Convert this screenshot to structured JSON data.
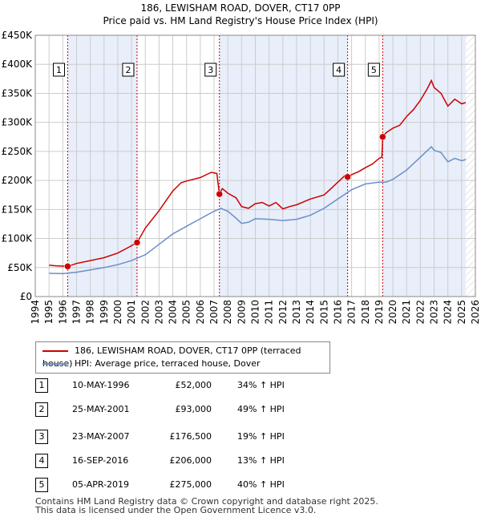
{
  "title_line1": "186, LEWISHAM ROAD, DOVER, CT17 0PP",
  "title_line2": "Price paid vs. HM Land Registry's House Price Index (HPI)",
  "colors": {
    "property": "#cc0000",
    "hpi": "#6b8fc9",
    "band": "#e8eefa",
    "grid": "#cccccc",
    "marker_line": "#cc0000"
  },
  "chart_data": {
    "type": "line",
    "xlim": [
      1994,
      2026
    ],
    "ylim": [
      0,
      450000
    ],
    "y_ticks": [
      0,
      50000,
      100000,
      150000,
      200000,
      250000,
      300000,
      350000,
      400000,
      450000
    ],
    "y_tick_labels": [
      "£0",
      "£50K",
      "£100K",
      "£150K",
      "£200K",
      "£250K",
      "£300K",
      "£350K",
      "£400K",
      "£450K"
    ],
    "x_ticks": [
      1994,
      1995,
      1996,
      1997,
      1998,
      1999,
      2000,
      2001,
      2002,
      2003,
      2004,
      2005,
      2006,
      2007,
      2008,
      2009,
      2010,
      2011,
      2012,
      2013,
      2014,
      2015,
      2016,
      2017,
      2018,
      2019,
      2020,
      2021,
      2022,
      2023,
      2024,
      2025,
      2026
    ],
    "data_start": 1995.0,
    "data_end": 2025.3,
    "series": [
      {
        "name": "186, LEWISHAM ROAD, DOVER, CT17 0PP (terraced house)",
        "color": "#cc0000",
        "points": [
          [
            1995.0,
            54000
          ],
          [
            1995.5,
            53000
          ],
          [
            1996.0,
            52500
          ],
          [
            1996.36,
            52000
          ],
          [
            1997.0,
            57000
          ],
          [
            1998.0,
            62000
          ],
          [
            1999.0,
            67000
          ],
          [
            2000.0,
            75000
          ],
          [
            2000.8,
            85000
          ],
          [
            2001.4,
            93000
          ],
          [
            2002.0,
            118000
          ],
          [
            2003.0,
            148000
          ],
          [
            2004.0,
            182000
          ],
          [
            2004.6,
            196000
          ],
          [
            2005.0,
            199000
          ],
          [
            2006.0,
            205000
          ],
          [
            2006.8,
            214000
          ],
          [
            2007.2,
            212000
          ],
          [
            2007.39,
            176500
          ],
          [
            2007.6,
            186000
          ],
          [
            2008.0,
            178000
          ],
          [
            2008.6,
            170000
          ],
          [
            2009.0,
            155000
          ],
          [
            2009.5,
            152000
          ],
          [
            2010.0,
            160000
          ],
          [
            2010.5,
            162000
          ],
          [
            2011.0,
            156000
          ],
          [
            2011.5,
            162000
          ],
          [
            2012.0,
            151000
          ],
          [
            2012.5,
            155000
          ],
          [
            2013.0,
            158000
          ],
          [
            2013.5,
            163000
          ],
          [
            2014.0,
            168000
          ],
          [
            2015.0,
            175000
          ],
          [
            2015.5,
            186000
          ],
          [
            2016.0,
            197000
          ],
          [
            2016.5,
            208000
          ],
          [
            2016.71,
            206000
          ],
          [
            2017.0,
            210000
          ],
          [
            2017.5,
            215000
          ],
          [
            2018.0,
            222000
          ],
          [
            2018.5,
            228000
          ],
          [
            2019.0,
            238000
          ],
          [
            2019.2,
            240000
          ],
          [
            2019.26,
            275000
          ],
          [
            2019.5,
            282000
          ],
          [
            2020.0,
            290000
          ],
          [
            2020.5,
            295000
          ],
          [
            2021.0,
            310000
          ],
          [
            2021.5,
            322000
          ],
          [
            2022.0,
            338000
          ],
          [
            2022.5,
            358000
          ],
          [
            2022.8,
            372000
          ],
          [
            2023.0,
            360000
          ],
          [
            2023.5,
            350000
          ],
          [
            2024.0,
            328000
          ],
          [
            2024.5,
            340000
          ],
          [
            2025.0,
            332000
          ],
          [
            2025.3,
            334000
          ]
        ]
      },
      {
        "name": "HPI: Average price, terraced house, Dover",
        "color": "#6b8fc9",
        "points": [
          [
            1995.0,
            40000
          ],
          [
            1996.0,
            39500
          ],
          [
            1997.0,
            42000
          ],
          [
            1998.0,
            46000
          ],
          [
            1999.0,
            50000
          ],
          [
            2000.0,
            55000
          ],
          [
            2001.0,
            62000
          ],
          [
            2002.0,
            72000
          ],
          [
            2003.0,
            90000
          ],
          [
            2004.0,
            108000
          ],
          [
            2005.0,
            121000
          ],
          [
            2006.0,
            134000
          ],
          [
            2007.0,
            147000
          ],
          [
            2007.5,
            152000
          ],
          [
            2008.0,
            147000
          ],
          [
            2008.6,
            135000
          ],
          [
            2009.0,
            126000
          ],
          [
            2009.5,
            128000
          ],
          [
            2010.0,
            134000
          ],
          [
            2011.0,
            133000
          ],
          [
            2012.0,
            131000
          ],
          [
            2013.0,
            133000
          ],
          [
            2014.0,
            140000
          ],
          [
            2015.0,
            152000
          ],
          [
            2016.0,
            168000
          ],
          [
            2017.0,
            184000
          ],
          [
            2018.0,
            194000
          ],
          [
            2019.0,
            197000
          ],
          [
            2019.5,
            197000
          ],
          [
            2020.0,
            202000
          ],
          [
            2021.0,
            218000
          ],
          [
            2022.0,
            240000
          ],
          [
            2022.8,
            258000
          ],
          [
            2023.0,
            252000
          ],
          [
            2023.5,
            248000
          ],
          [
            2024.0,
            232000
          ],
          [
            2024.5,
            238000
          ],
          [
            2025.0,
            234000
          ],
          [
            2025.3,
            236000
          ]
        ]
      }
    ],
    "sales": [
      {
        "label": "1",
        "year": 1996.36,
        "price": 52000
      },
      {
        "label": "2",
        "year": 2001.4,
        "price": 93000
      },
      {
        "label": "3",
        "year": 2007.39,
        "price": 176500
      },
      {
        "label": "4",
        "year": 2016.71,
        "price": 206000
      },
      {
        "label": "5",
        "year": 2019.26,
        "price": 275000
      }
    ]
  },
  "legend": {
    "property": "186, LEWISHAM ROAD, DOVER, CT17 0PP (terraced house)",
    "hpi": "HPI: Average price, terraced house, Dover"
  },
  "sales_table": [
    {
      "num": "1",
      "date": "10-MAY-1996",
      "price": "£52,000",
      "hpi": "34% ↑ HPI"
    },
    {
      "num": "2",
      "date": "25-MAY-2001",
      "price": "£93,000",
      "hpi": "49% ↑ HPI"
    },
    {
      "num": "3",
      "date": "23-MAY-2007",
      "price": "£176,500",
      "hpi": "19% ↑ HPI"
    },
    {
      "num": "4",
      "date": "16-SEP-2016",
      "price": "£206,000",
      "hpi": "13% ↑ HPI"
    },
    {
      "num": "5",
      "date": "05-APR-2019",
      "price": "£275,000",
      "hpi": "40% ↑ HPI"
    }
  ],
  "footer": {
    "line1": "Contains HM Land Registry data © Crown copyright and database right 2025.",
    "line2": "This data is licensed under the Open Government Licence v3.0."
  }
}
